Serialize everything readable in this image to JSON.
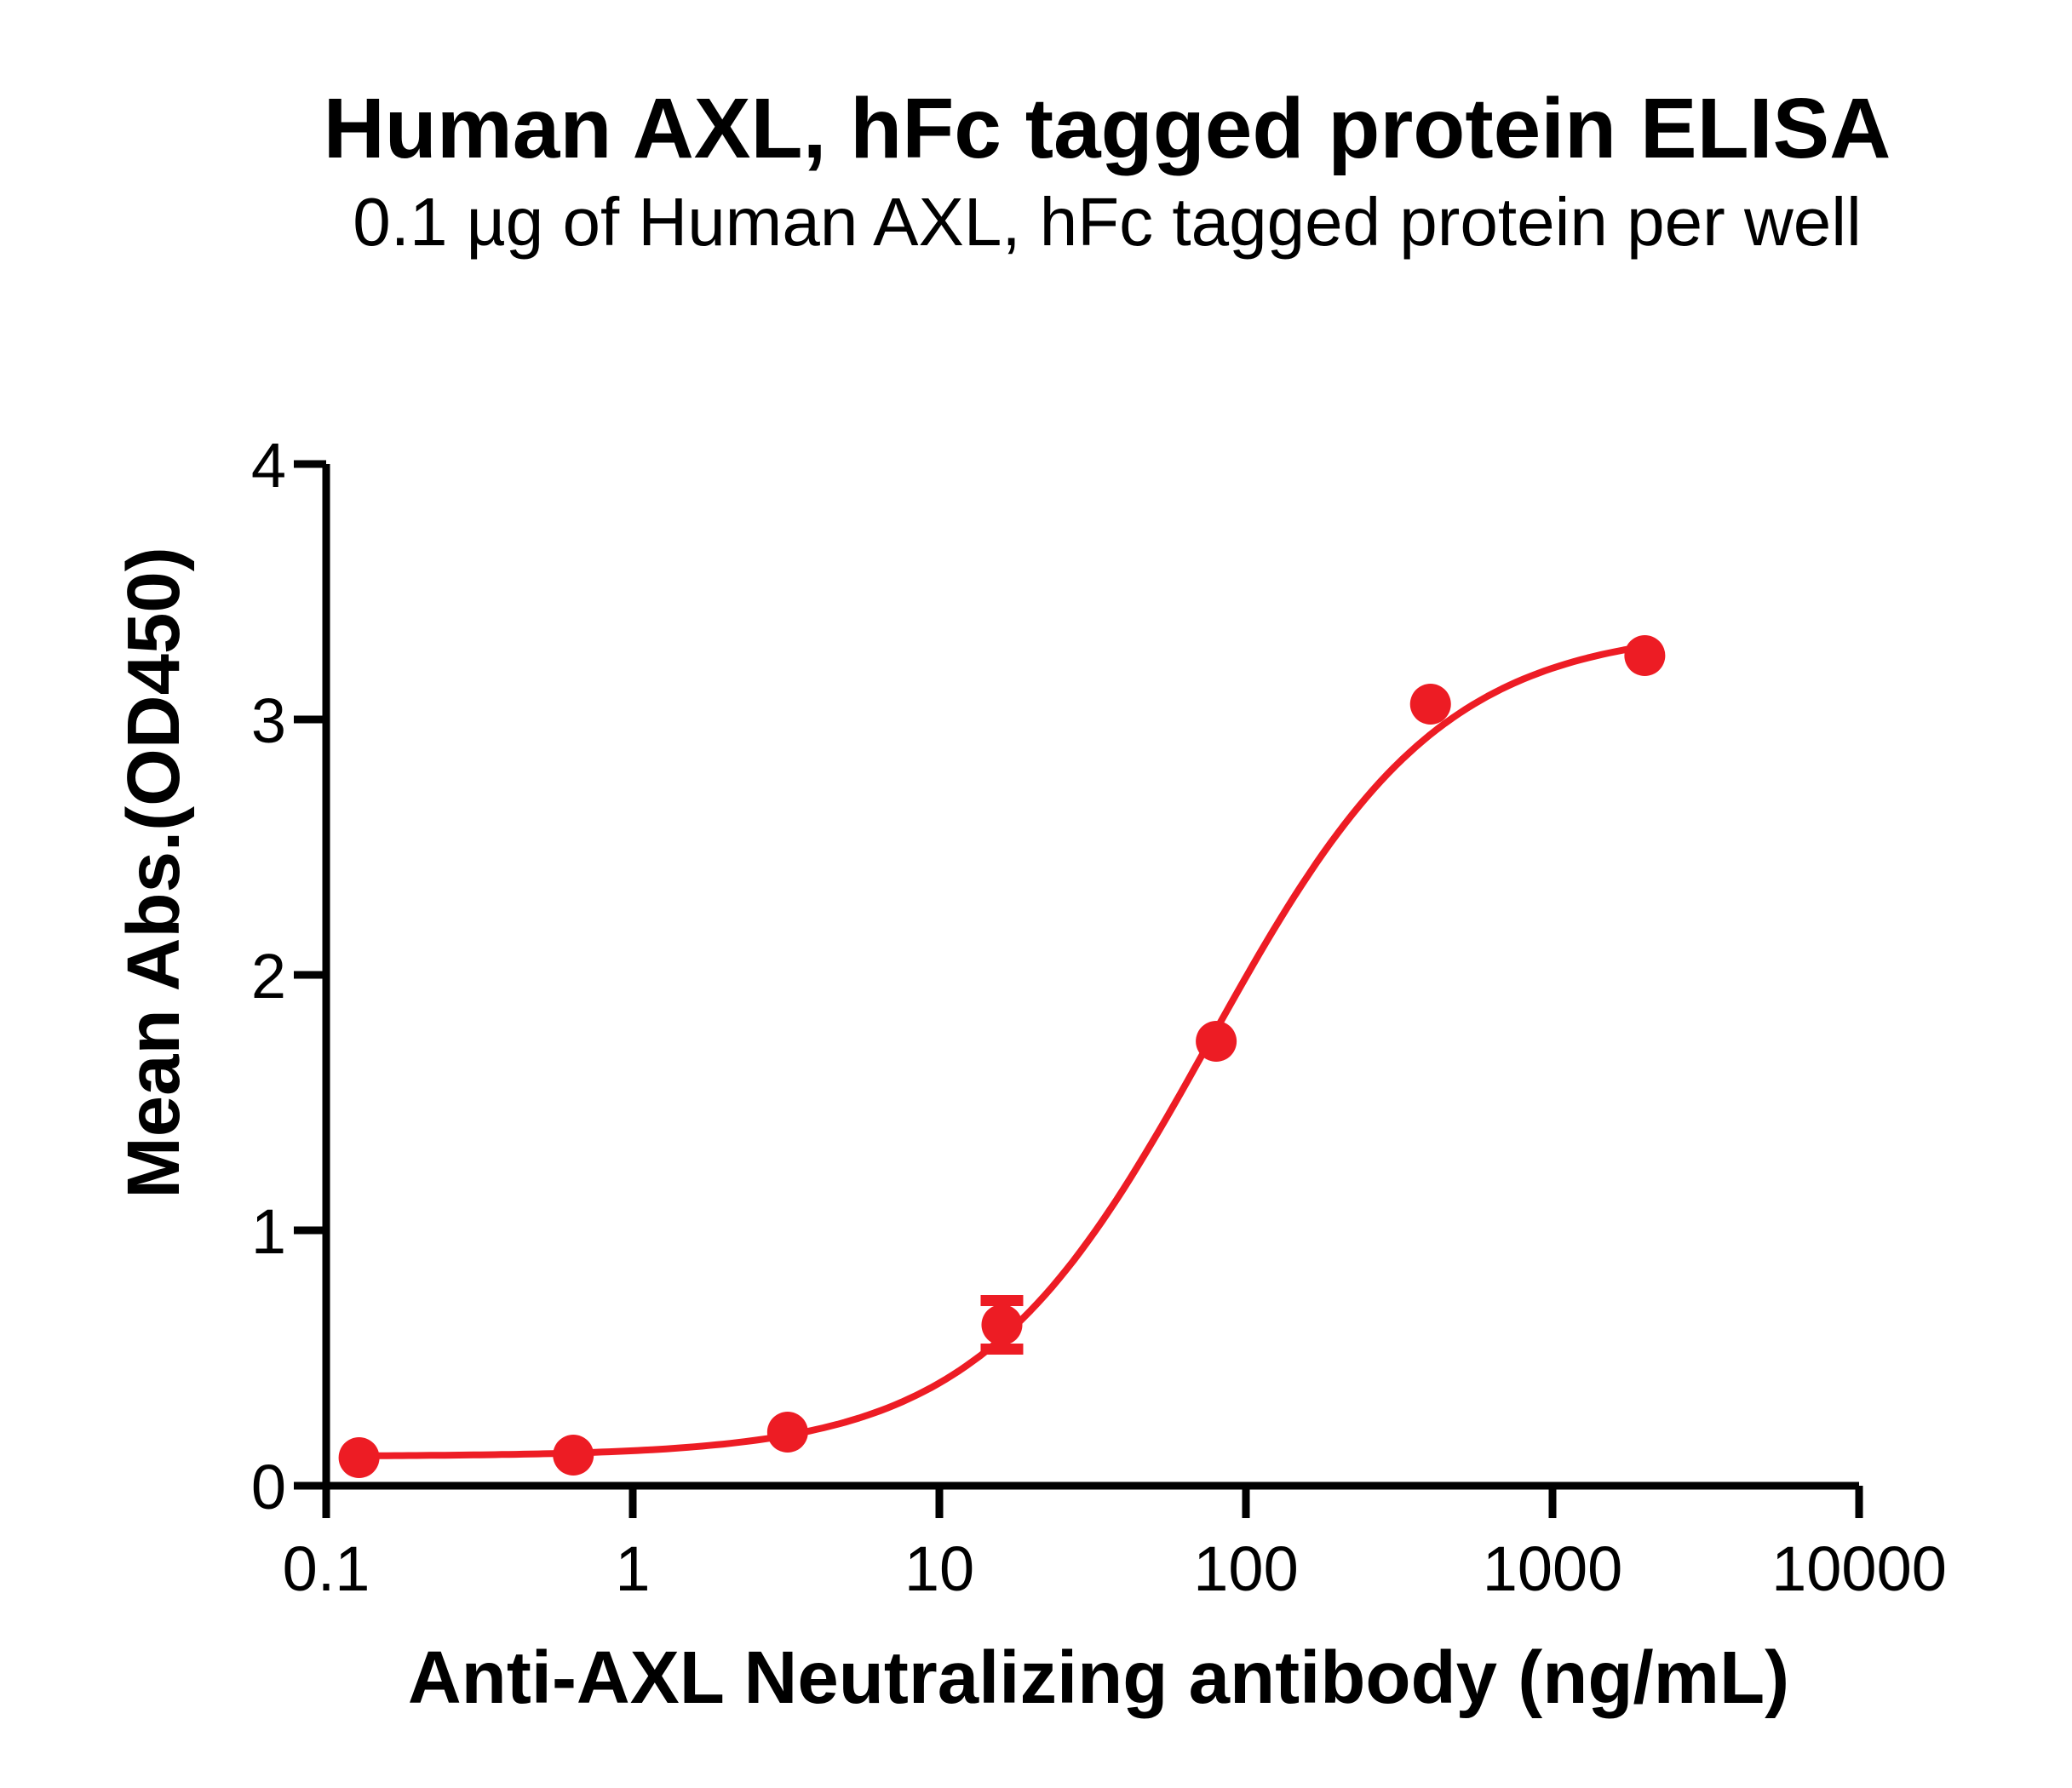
{
  "chart": {
    "title": "Human AXL, hFc tagged protein ELISA",
    "subtitle": "0.1 µg of Human AXL, hFc tagged protein per well",
    "xlabel": "Anti-AXL Neutralizing antibody (ng/mL)",
    "ylabel": "Mean Abs.(OD450)"
  },
  "chart_data": {
    "type": "scatter",
    "title": "Human AXL, hFc tagged protein ELISA",
    "subtitle": "0.1 µg of Human AXL, hFc tagged protein per well",
    "xlabel": "Anti-AXL Neutralizing antibody (ng/mL)",
    "ylabel": "Mean Abs.(OD450)",
    "x_scale": "log10",
    "xlim": [
      0.1,
      10000
    ],
    "ylim": [
      0,
      4
    ],
    "x_ticks": [
      0.1,
      1,
      10,
      100,
      1000,
      10000
    ],
    "x_tick_labels": [
      "0.1",
      "1",
      "10",
      "100",
      "1000",
      "10000"
    ],
    "y_ticks": [
      0,
      1,
      2,
      3,
      4
    ],
    "y_tick_labels": [
      "0",
      "1",
      "2",
      "3",
      "4"
    ],
    "grid": false,
    "legend": "none",
    "series": [
      {
        "name": "Anti-AXL Neutralizing antibody",
        "x": [
          0.128,
          0.64,
          3.2,
          16,
          80,
          400,
          2000
        ],
        "y": [
          0.11,
          0.12,
          0.21,
          0.63,
          1.74,
          3.06,
          3.25
        ]
      }
    ],
    "error_bars": [
      {
        "x": 16,
        "y": 0.63,
        "sd": 0.095
      }
    ],
    "curve_fit": {
      "model": "4PL",
      "bottom": 0.115,
      "top": 3.36,
      "ec50": 76,
      "hill": 1.15,
      "x_start": 0.128,
      "x_end": 2000
    },
    "marker_color": "#ED1C24",
    "line_color": "#ED1C24",
    "axis_color": "#000000"
  }
}
